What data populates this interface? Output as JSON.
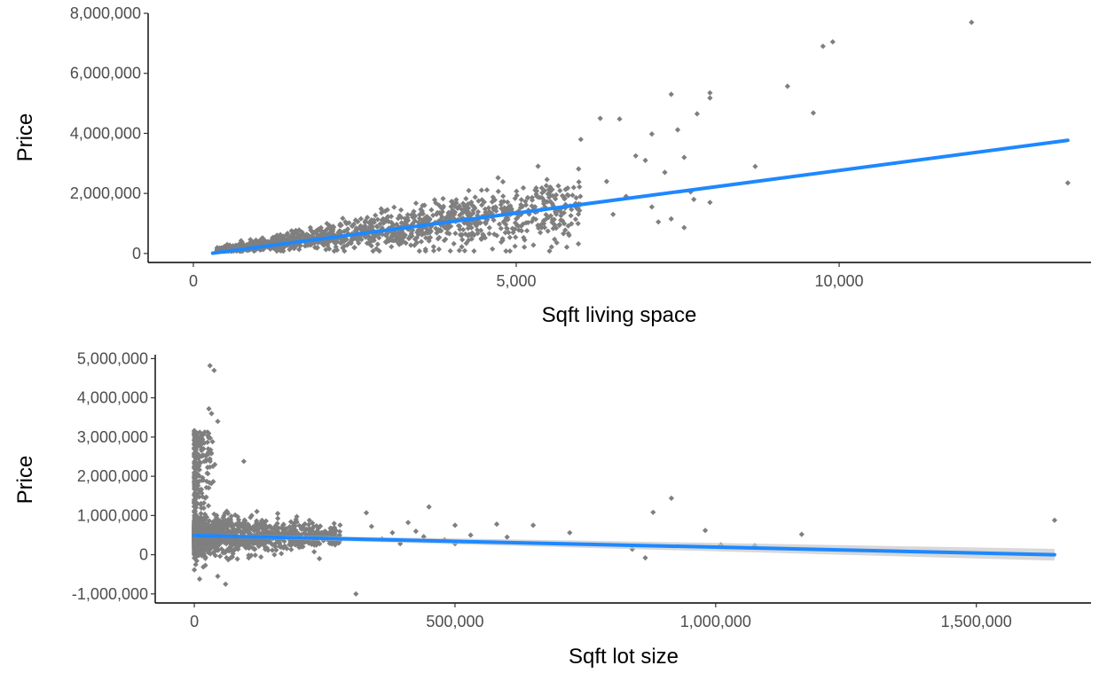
{
  "chart_data": [
    {
      "type": "scatter",
      "title": "",
      "xlabel": "Sqft living space",
      "ylabel": "Price",
      "xlim": [
        -700,
        13900
      ],
      "ylim": [
        -300000,
        8000000
      ],
      "xticks": [
        0,
        5000,
        10000
      ],
      "xtick_labels": [
        "0",
        "5,000",
        "10,000"
      ],
      "yticks": [
        0,
        2000000,
        4000000,
        6000000,
        8000000
      ],
      "ytick_labels": [
        "0",
        "2,000,000",
        "4,000,000",
        "6,000,000",
        "8,000,000"
      ],
      "grid": false,
      "colors": {
        "points": "#7f7f7f",
        "trend": "#1e88ff",
        "band": "#c8c8c8"
      },
      "outliers": [
        {
          "x": 12050,
          "y": 7700000
        },
        {
          "x": 9900,
          "y": 7050000
        },
        {
          "x": 9750,
          "y": 6900000
        },
        {
          "x": 9200,
          "y": 5570000
        },
        {
          "x": 8000,
          "y": 5350000
        },
        {
          "x": 8000,
          "y": 5180000
        },
        {
          "x": 7400,
          "y": 5300000
        },
        {
          "x": 7800,
          "y": 4650000
        },
        {
          "x": 9600,
          "y": 4680000
        },
        {
          "x": 6600,
          "y": 4480000
        },
        {
          "x": 6300,
          "y": 4500000
        },
        {
          "x": 7500,
          "y": 4120000
        },
        {
          "x": 7100,
          "y": 3980000
        },
        {
          "x": 6000,
          "y": 3800000
        },
        {
          "x": 13540,
          "y": 2350000
        },
        {
          "x": 8700,
          "y": 2900000
        },
        {
          "x": 7600,
          "y": 3200000
        },
        {
          "x": 7000,
          "y": 3100000
        },
        {
          "x": 6850,
          "y": 3250000
        },
        {
          "x": 7300,
          "y": 2700000
        },
        {
          "x": 7200,
          "y": 1050000
        },
        {
          "x": 7600,
          "y": 860000
        },
        {
          "x": 7100,
          "y": 1550000
        },
        {
          "x": 6500,
          "y": 1300000
        },
        {
          "x": 6700,
          "y": 1900000
        },
        {
          "x": 7400,
          "y": 1150000
        },
        {
          "x": 6400,
          "y": 2400000
        },
        {
          "x": 7700,
          "y": 2050000
        },
        {
          "x": 7750,
          "y": 1800000
        },
        {
          "x": 8000,
          "y": 1700000
        }
      ],
      "cloud": {
        "x_range": [
          370,
          6000
        ],
        "slope": 260,
        "spread": 0.38,
        "n": 1400
      },
      "trend": {
        "x": [
          300,
          13540
        ],
        "y": [
          10000,
          3770000
        ]
      }
    },
    {
      "type": "scatter",
      "title": "",
      "xlabel": "Sqft lot size",
      "ylabel": "Price",
      "xlim": [
        -75000,
        1720000
      ],
      "ylim": [
        -1230000,
        5100000
      ],
      "xticks": [
        0,
        500000,
        1000000,
        1500000
      ],
      "xtick_labels": [
        "0",
        "500,000",
        "1,000,000",
        "1,500,000"
      ],
      "yticks": [
        -1000000,
        0,
        1000000,
        2000000,
        3000000,
        4000000,
        5000000
      ],
      "ytick_labels": [
        "-1,000,000",
        "0",
        "1,000,000",
        "2,000,000",
        "3,000,000",
        "4,000,000",
        "5,000,000"
      ],
      "grid": false,
      "colors": {
        "points": "#7f7f7f",
        "trend": "#1e88ff",
        "band": "#c8c8c8"
      },
      "outliers": [
        {
          "x": 30000,
          "y": 4820000
        },
        {
          "x": 38000,
          "y": 4700000
        },
        {
          "x": 28000,
          "y": 3720000
        },
        {
          "x": 33000,
          "y": 3600000
        },
        {
          "x": 45000,
          "y": 3400000
        },
        {
          "x": 95000,
          "y": 2380000
        },
        {
          "x": 915000,
          "y": 1440000
        },
        {
          "x": 1650000,
          "y": 880000
        },
        {
          "x": 880000,
          "y": 1080000
        },
        {
          "x": 980000,
          "y": 620000
        },
        {
          "x": 1165000,
          "y": 520000
        },
        {
          "x": 1075000,
          "y": 230000
        },
        {
          "x": 1010000,
          "y": 250000
        },
        {
          "x": 865000,
          "y": -80000
        },
        {
          "x": 840000,
          "y": 140000
        },
        {
          "x": 310000,
          "y": -1000000
        },
        {
          "x": 650000,
          "y": 750000
        },
        {
          "x": 580000,
          "y": 780000
        },
        {
          "x": 500000,
          "y": 750000
        },
        {
          "x": 450000,
          "y": 1220000
        },
        {
          "x": 330000,
          "y": 1070000
        },
        {
          "x": 410000,
          "y": 820000
        },
        {
          "x": 720000,
          "y": 560000
        },
        {
          "x": 530000,
          "y": 500000
        },
        {
          "x": 480000,
          "y": 380000
        },
        {
          "x": 500000,
          "y": 280000
        },
        {
          "x": 600000,
          "y": 450000
        },
        {
          "x": 380000,
          "y": 560000
        },
        {
          "x": 425000,
          "y": 600000
        },
        {
          "x": 360000,
          "y": 400000
        },
        {
          "x": 440000,
          "y": 460000
        },
        {
          "x": 395000,
          "y": 280000
        },
        {
          "x": 340000,
          "y": 720000
        },
        {
          "x": 270000,
          "y": 250000
        },
        {
          "x": 240000,
          "y": -100000
        },
        {
          "x": 195000,
          "y": 900000
        },
        {
          "x": 160000,
          "y": 1050000
        },
        {
          "x": 120000,
          "y": 1100000
        },
        {
          "x": 60000,
          "y": -750000
        },
        {
          "x": 45000,
          "y": -550000
        },
        {
          "x": 10000,
          "y": -620000
        }
      ],
      "cloud": {
        "x_range": [
          0,
          280000
        ],
        "center": 480000,
        "spread": 260000,
        "n": 1500
      },
      "trend": {
        "x": [
          0,
          1650000
        ],
        "y": [
          490000,
          0
        ]
      },
      "band": {
        "x": [
          0,
          1650000
        ],
        "upper": [
          530000,
          150000
        ],
        "lower": [
          450000,
          -150000
        ]
      }
    }
  ]
}
